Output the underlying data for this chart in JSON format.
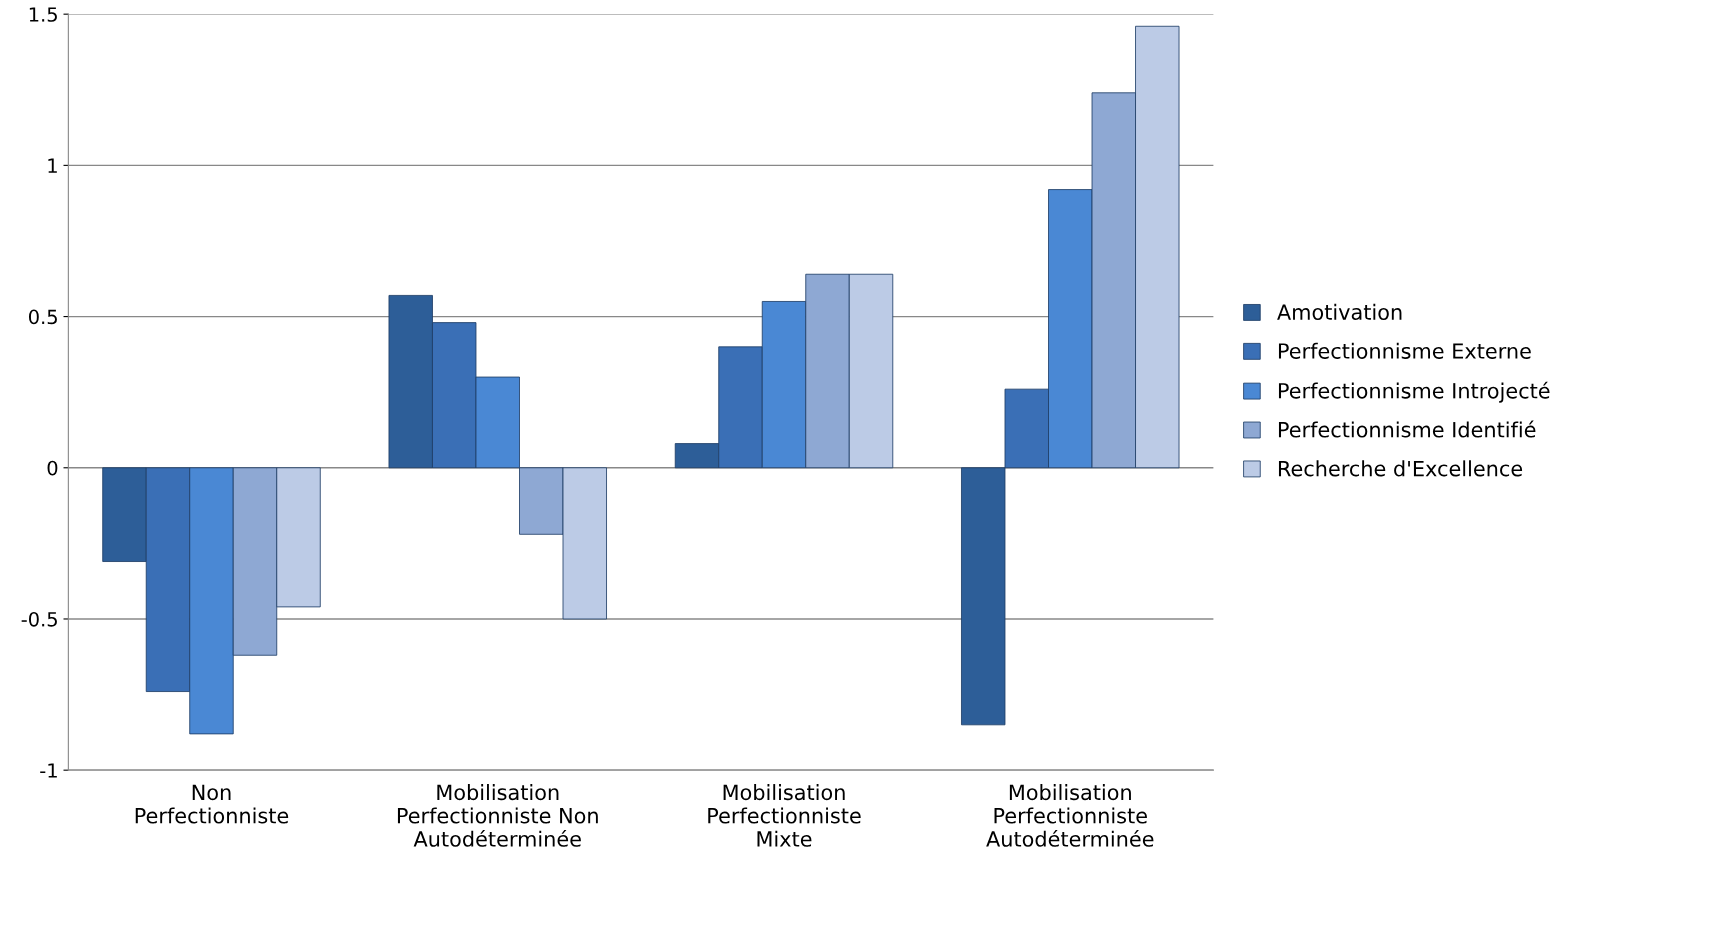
{
  "chart_data": {
    "type": "bar",
    "categories": [
      "Non\nPerfectionniste",
      "Mobilisation\nPerfectionniste Non\nAutodéterminée",
      "Mobilisation\nPerfectionniste\nMixte",
      "Mobilisation\nPerfectionniste\nAutodéterminée"
    ],
    "series": [
      {
        "name": "Amotivation",
        "color": "#2d5e98",
        "values": [
          -0.31,
          0.57,
          0.08,
          -0.85
        ]
      },
      {
        "name": "Perfectionnisme Externe",
        "color": "#3a6fb6",
        "values": [
          -0.74,
          0.48,
          0.4,
          0.26
        ]
      },
      {
        "name": "Perfectionnisme Introjecté",
        "color": "#4a88d4",
        "values": [
          -0.88,
          0.3,
          0.55,
          0.92
        ]
      },
      {
        "name": "Perfectionnisme Identifié",
        "color": "#8ea8d3",
        "values": [
          -0.62,
          -0.22,
          0.64,
          1.24
        ]
      },
      {
        "name": "Recherche d'Excellence",
        "color": "#bccbe6",
        "values": [
          -0.46,
          -0.5,
          0.64,
          1.46
        ]
      }
    ],
    "ylim": [
      -1,
      1.5
    ],
    "yticks": [
      -1,
      -0.5,
      0,
      0.5,
      1,
      1.5
    ],
    "grid": "y",
    "legend": "right"
  }
}
